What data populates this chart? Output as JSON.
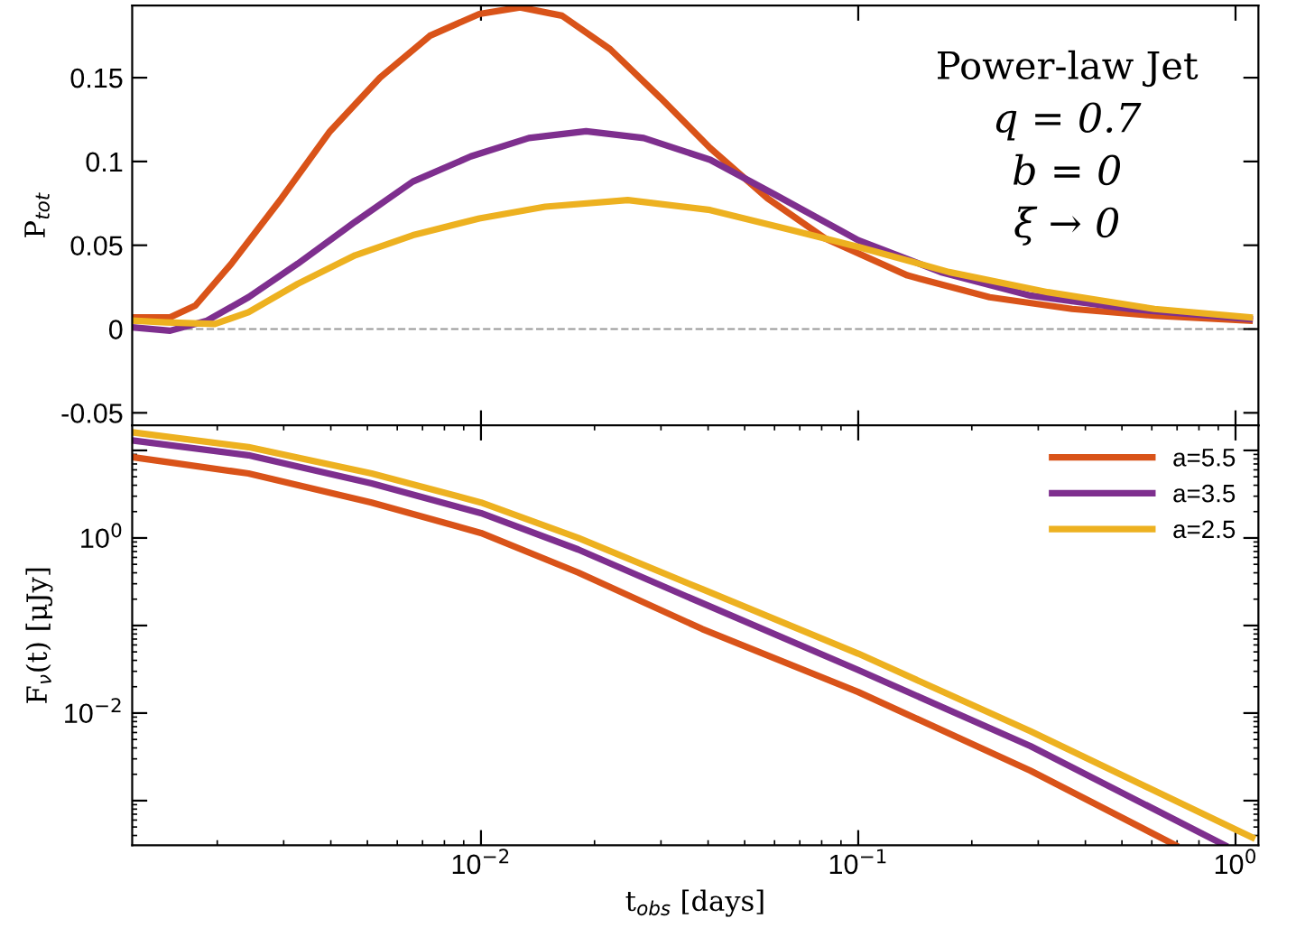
{
  "chart_data": [
    {
      "type": "line",
      "ylabel": "P$_{tot}$",
      "log": "x",
      "xlim": [
        0.00119,
        1.15
      ],
      "ylim": [
        -0.0575,
        0.193
      ],
      "xticks": [
        {
          "value": 0.01,
          "label": null
        },
        {
          "value": 0.1,
          "label": null
        },
        {
          "value": 1,
          "label": null
        }
      ],
      "yticks": [
        -0.05,
        0,
        0.05,
        0.1,
        0.15
      ],
      "tick_labels": "y",
      "grid": false,
      "legend": false,
      "line_style": "solid",
      "marker": "none",
      "annotations": [
        "Power-law Jet",
        "q = 0.7",
        "b = 0",
        "ξ → 0"
      ],
      "ref_lines": [
        {
          "axis": "y",
          "value": 0,
          "label": null,
          "color": "#999999",
          "line_style": "dashed"
        }
      ],
      "series": [
        {
          "color": "#d95319",
          "x": [
            0.00119,
            0.0015,
            0.00175,
            0.00218,
            0.00296,
            0.00398,
            0.0054,
            0.00732,
            0.0099,
            0.0127,
            0.0164,
            0.022,
            0.0299,
            0.0405,
            0.0575,
            0.0818,
            0.135,
            0.223,
            0.369,
            0.61,
            1.09
          ],
          "values": [
            0.007,
            0.007,
            0.014,
            0.039,
            0.078,
            0.118,
            0.15,
            0.175,
            0.188,
            0.192,
            0.187,
            0.167,
            0.138,
            0.108,
            0.078,
            0.054,
            0.032,
            0.019,
            0.012,
            0.008,
            0.005
          ]
        },
        {
          "color": "#7e2f8e",
          "x": [
            0.00119,
            0.0015,
            0.00188,
            0.00242,
            0.00327,
            0.00464,
            0.0066,
            0.0094,
            0.0134,
            0.019,
            0.027,
            0.0405,
            0.0604,
            0.1,
            0.1655,
            0.286,
            0.524,
            1.09
          ],
          "values": [
            0.001,
            -0.001,
            0.005,
            0.019,
            0.039,
            0.064,
            0.088,
            0.103,
            0.114,
            0.118,
            0.114,
            0.101,
            0.08,
            0.053,
            0.034,
            0.02,
            0.012,
            0.006
          ]
        },
        {
          "color": "#edb120",
          "x": [
            0.00119,
            0.00146,
            0.00197,
            0.00242,
            0.00327,
            0.00464,
            0.0066,
            0.0099,
            0.0148,
            0.0245,
            0.0405,
            0.0667,
            0.1,
            0.174,
            0.318,
            0.61,
            1.09
          ],
          "values": [
            0.005,
            0.004,
            0.003,
            0.01,
            0.027,
            0.044,
            0.056,
            0.066,
            0.073,
            0.077,
            0.071,
            0.059,
            0.049,
            0.034,
            0.022,
            0.012,
            0.007
          ]
        }
      ]
    },
    {
      "type": "line",
      "xlabel": "t$_{obs}$ [days]",
      "ylabel": "F$_{ν}$(t) [μJy]",
      "log": "xy",
      "xlim": [
        0.00119,
        1.15
      ],
      "ylim": [
        0.00031,
        19.3
      ],
      "xticks": [
        {
          "value": 0.01,
          "label": "10$^{−2}$"
        },
        {
          "value": 0.1,
          "label": "10$^{−1}$"
        },
        {
          "value": 1,
          "label": "10$^{0}$"
        }
      ],
      "yticks": [
        {
          "value": 0.001,
          "label": null
        },
        {
          "value": 0.01,
          "label": "10$^{−2}$"
        },
        {
          "value": 0.1,
          "label": null
        },
        {
          "value": 1,
          "label": "10$^{0}$"
        },
        {
          "value": 10,
          "label": null
        }
      ],
      "grid": false,
      "legend": "top right",
      "line_style": "solid",
      "marker": "none",
      "series": [
        {
          "name": "a=5.5",
          "color": "#d95319",
          "x": [
            0.00119,
            0.00242,
            0.00513,
            0.01,
            0.0181,
            0.0386,
            0.1,
            0.286,
            0.693
          ],
          "values": [
            8.4,
            5.45,
            2.54,
            1.14,
            0.403,
            0.0912,
            0.0174,
            0.0022,
            0.00031
          ]
        },
        {
          "name": "a=3.5",
          "color": "#7e2f8e",
          "x": [
            0.00119,
            0.00242,
            0.00513,
            0.01,
            0.0181,
            0.0386,
            0.1,
            0.286,
            0.936
          ],
          "values": [
            13.0,
            8.8,
            4.2,
            1.92,
            0.738,
            0.18,
            0.031,
            0.0042,
            0.00031
          ]
        },
        {
          "name": "a=2.5",
          "color": "#edb120",
          "x": [
            0.00119,
            0.00242,
            0.00513,
            0.01,
            0.0181,
            0.0386,
            0.1,
            0.286,
            1.107
          ],
          "values": [
            16.1,
            10.9,
            5.45,
            2.54,
            1.0,
            0.26,
            0.0478,
            0.0062,
            0.00038
          ]
        }
      ]
    }
  ]
}
